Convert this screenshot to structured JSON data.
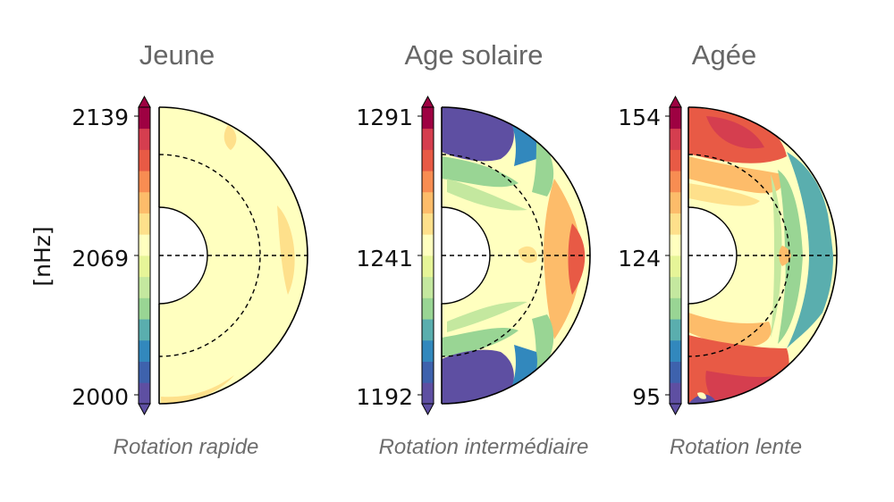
{
  "unit_label": "[nHz]",
  "palette": [
    "#5e4fa2",
    "#3e62ad",
    "#3288bd",
    "#5aaeae",
    "#99d594",
    "#c4e89f",
    "#e6f598",
    "#ffffbf",
    "#fee08b",
    "#fdbc6a",
    "#f88d52",
    "#e85a45",
    "#d53e4f",
    "#9e0142"
  ],
  "line_color": "#000000",
  "panels": [
    {
      "title": "Jeune",
      "caption": "Rotation rapide",
      "colorbar_ticks": [
        "2139",
        "2069",
        "2000"
      ],
      "vmin": 2000,
      "vmax": 2139,
      "pattern": "uniform"
    },
    {
      "title": "Age solaire",
      "caption": "Rotation intermédiaire",
      "colorbar_ticks": [
        "1291",
        "1241",
        "1192"
      ],
      "vmin": 1192,
      "vmax": 1291,
      "pattern": "solar"
    },
    {
      "title": "Agée",
      "caption": "Rotation lente",
      "colorbar_ticks": [
        "154",
        "124",
        "95"
      ],
      "vmin": 95,
      "vmax": 154,
      "pattern": "antisolar"
    }
  ]
}
